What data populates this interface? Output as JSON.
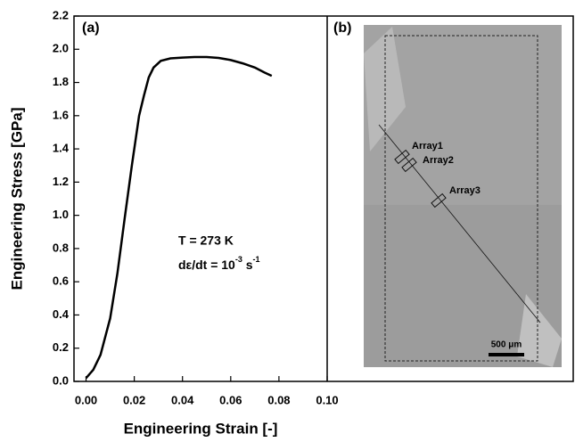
{
  "chart_data": {
    "type": "line",
    "panel_a_label": "(a)",
    "panel_b_label": "(b)",
    "xlabel": "Engineering Strain [-]",
    "ylabel": "Engineering Stress [GPa]",
    "annotation_temp": "T = 273 K",
    "annotation_rate": [
      "dε/dt = 10",
      "-3",
      " s",
      "-1"
    ],
    "x": [
      0,
      0.003,
      0.006,
      0.01,
      0.013,
      0.016,
      0.019,
      0.021,
      0.022,
      0.024,
      0.026,
      0.028,
      0.031,
      0.035,
      0.04,
      0.045,
      0.05,
      0.055,
      0.06,
      0.065,
      0.07,
      0.074,
      0.077
    ],
    "series": [
      {
        "color": "#000000",
        "values": [
          0.02,
          0.07,
          0.16,
          0.38,
          0.65,
          0.98,
          1.3,
          1.5,
          1.6,
          1.72,
          1.83,
          1.89,
          1.93,
          1.945,
          1.95,
          1.953,
          1.953,
          1.948,
          1.935,
          1.915,
          1.89,
          1.86,
          1.84
        ]
      }
    ],
    "xlim": [
      -0.005,
      0.1
    ],
    "xticks": [
      {
        "value": 0,
        "label": "0.00"
      },
      0.02,
      0.04,
      0.06,
      0.08,
      {
        "value": 0.1,
        "label": "0.10"
      }
    ],
    "ylim": [
      0,
      2.2
    ],
    "yticks": [
      {
        "value": 0,
        "label": "0.0"
      },
      0.2,
      0.4,
      0.6,
      0.8,
      {
        "value": 1,
        "label": "1.0"
      },
      1.2,
      1.4,
      1.6,
      1.8,
      {
        "value": 2,
        "label": "2.0"
      },
      2.2
    ],
    "image_labels": [
      "Array1",
      "Array2",
      "Array3"
    ],
    "scale_bar": "500 μm"
  }
}
